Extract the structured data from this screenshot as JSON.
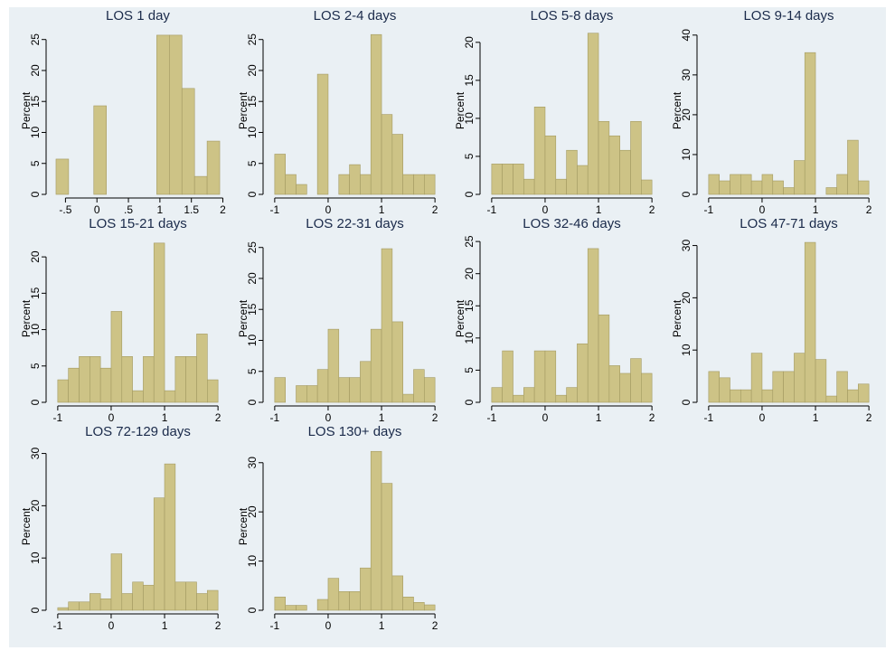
{
  "chart_data": [
    {
      "type": "histogram",
      "title": "LOS 1 day",
      "ylabel": "Percent",
      "color": "#cdc386",
      "bins": [
        -0.65,
        -0.45,
        -0.25,
        -0.05,
        0.15,
        0.35,
        0.55,
        0.75,
        0.95,
        1.15,
        1.35,
        1.55,
        1.75,
        1.95
      ],
      "values": [
        5.7,
        0,
        0,
        14.3,
        0,
        0,
        0,
        0,
        25.7,
        25.7,
        17.1,
        2.9,
        8.6
      ],
      "xlim": [
        -0.75,
        2.05
      ],
      "ylim": [
        0,
        27
      ],
      "xticks": [
        {
          "value": -0.5,
          "label": "-.5"
        },
        0,
        {
          "value": 0.5,
          "label": ".5"
        },
        1,
        1.5,
        2
      ],
      "yticks": [
        0,
        5,
        10,
        15,
        20,
        25
      ]
    },
    {
      "type": "histogram",
      "title": "LOS 2-4 days",
      "ylabel": "Percent",
      "color": "#cdc386",
      "bins": [
        -1,
        -0.8,
        -0.6,
        -0.4,
        -0.2,
        0,
        0.2,
        0.4,
        0.6,
        0.8,
        1,
        1.2,
        1.4,
        1.6,
        1.8,
        2
      ],
      "values": [
        6.5,
        3.2,
        1.6,
        0,
        19.4,
        0,
        3.2,
        4.8,
        3.2,
        25.8,
        12.9,
        9.7,
        3.2,
        3.2,
        3.2
      ],
      "xlim": [
        -1.15,
        2.15
      ],
      "ylim": [
        0,
        27
      ],
      "xticks": [
        -1,
        0,
        1,
        2
      ],
      "yticks": [
        0,
        5,
        10,
        15,
        20,
        25
      ]
    },
    {
      "type": "histogram",
      "title": "LOS 5-8 days",
      "ylabel": "Percent",
      "color": "#cdc386",
      "bins": [
        -1,
        -0.8,
        -0.6,
        -0.4,
        -0.2,
        0,
        0.2,
        0.4,
        0.6,
        0.8,
        1,
        1.2,
        1.4,
        1.6,
        1.8,
        2
      ],
      "values": [
        4,
        4,
        4,
        2,
        11.5,
        7.7,
        2,
        5.8,
        3.8,
        21.2,
        9.6,
        7.7,
        5.8,
        9.6,
        1.9
      ],
      "xlim": [
        -1.15,
        2.15
      ],
      "ylim": [
        0,
        22
      ],
      "xticks": [
        -1,
        0,
        1,
        2
      ],
      "yticks": [
        0,
        5,
        10,
        15,
        20
      ]
    },
    {
      "type": "histogram",
      "title": "LOS 9-14 days",
      "ylabel": "Percent",
      "color": "#cdc386",
      "bins": [
        -1,
        -0.8,
        -0.6,
        -0.4,
        -0.2,
        0,
        0.2,
        0.4,
        0.6,
        0.8,
        1,
        1.2,
        1.4,
        1.6,
        1.8,
        2
      ],
      "values": [
        5,
        3.4,
        5,
        5,
        3.4,
        5,
        3.4,
        1.7,
        8.5,
        35.6,
        0,
        1.7,
        5,
        13.6,
        3.4
      ],
      "xlim": [
        -1.15,
        2.15
      ],
      "ylim": [
        0,
        42
      ],
      "xticks": [
        -1,
        0,
        1,
        2
      ],
      "yticks": [
        0,
        10,
        20,
        30,
        40
      ]
    },
    {
      "type": "histogram",
      "title": "LOS 15-21 days",
      "ylabel": "Percent",
      "color": "#cdc386",
      "bins": [
        -1,
        -0.8,
        -0.6,
        -0.4,
        -0.2,
        0,
        0.2,
        0.4,
        0.6,
        0.8,
        1,
        1.2,
        1.4,
        1.6,
        1.8,
        2
      ],
      "values": [
        3.1,
        4.7,
        6.3,
        6.3,
        4.7,
        12.5,
        6.3,
        1.6,
        6.3,
        21.9,
        1.6,
        6.3,
        6.3,
        9.4,
        3.1
      ],
      "xlim": [
        -1.15,
        2.15
      ],
      "ylim": [
        0,
        23
      ],
      "xticks": [
        -1,
        0,
        1,
        2
      ],
      "yticks": [
        0,
        5,
        10,
        15,
        20
      ]
    },
    {
      "type": "histogram",
      "title": "LOS 22-31 days",
      "ylabel": "Percent",
      "color": "#cdc386",
      "bins": [
        -1,
        -0.8,
        -0.6,
        -0.4,
        -0.2,
        0,
        0.2,
        0.4,
        0.6,
        0.8,
        1,
        1.2,
        1.4,
        1.6,
        1.8,
        2
      ],
      "values": [
        4,
        0,
        2.7,
        2.7,
        5.3,
        11.8,
        4,
        4,
        6.6,
        11.8,
        24.8,
        13,
        1.3,
        5.3,
        4
      ],
      "xlim": [
        -1.15,
        2.15
      ],
      "ylim": [
        0,
        27
      ],
      "xticks": [
        -1,
        0,
        1,
        2
      ],
      "yticks": [
        0,
        5,
        10,
        15,
        20,
        25
      ]
    },
    {
      "type": "histogram",
      "title": "LOS 32-46 days",
      "ylabel": "Percent",
      "color": "#cdc386",
      "bins": [
        -1,
        -0.8,
        -0.6,
        -0.4,
        -0.2,
        0,
        0.2,
        0.4,
        0.6,
        0.8,
        1,
        1.2,
        1.4,
        1.6,
        1.8,
        2
      ],
      "values": [
        2.3,
        8,
        1.1,
        2.3,
        8,
        8,
        1.1,
        2.3,
        9.1,
        23.9,
        13.6,
        5.7,
        4.5,
        6.8,
        4.5
      ],
      "xlim": [
        -1.15,
        2.15
      ],
      "ylim": [
        0,
        26
      ],
      "xticks": [
        -1,
        0,
        1,
        2
      ],
      "yticks": [
        0,
        5,
        10,
        15,
        20,
        25
      ]
    },
    {
      "type": "histogram",
      "title": "LOS 47-71 days",
      "ylabel": "Percent",
      "color": "#cdc386",
      "bins": [
        -1,
        -0.8,
        -0.6,
        -0.4,
        -0.2,
        0,
        0.2,
        0.4,
        0.6,
        0.8,
        1,
        1.2,
        1.4,
        1.6,
        1.8,
        2
      ],
      "values": [
        5.9,
        4.7,
        2.4,
        2.4,
        9.4,
        2.4,
        5.9,
        5.9,
        9.4,
        30.6,
        8.2,
        1.2,
        5.9,
        2.4,
        3.5
      ],
      "xlim": [
        -1.15,
        2.15
      ],
      "ylim": [
        0,
        32
      ],
      "xticks": [
        -1,
        0,
        1,
        2
      ],
      "yticks": [
        0,
        10,
        20,
        30
      ]
    },
    {
      "type": "histogram",
      "title": "LOS 72-129 days",
      "ylabel": "Percent",
      "color": "#cdc386",
      "bins": [
        -1,
        -0.8,
        -0.6,
        -0.4,
        -0.2,
        0,
        0.2,
        0.4,
        0.6,
        0.8,
        1,
        1.2,
        1.4,
        1.6,
        1.8,
        2
      ],
      "values": [
        0.5,
        1.6,
        1.6,
        3.2,
        2.2,
        10.8,
        3.2,
        5.4,
        4.8,
        21.5,
        28,
        5.4,
        5.4,
        3.2,
        3.8
      ],
      "xlim": [
        -1.15,
        2.15
      ],
      "ylim": [
        0,
        32
      ],
      "xticks": [
        -1,
        0,
        1,
        2
      ],
      "yticks": [
        0,
        10,
        20,
        30
      ]
    },
    {
      "type": "histogram",
      "title": "LOS 130+ days",
      "ylabel": "Percent",
      "color": "#cdc386",
      "bins": [
        -1,
        -0.8,
        -0.6,
        -0.4,
        -0.2,
        0,
        0.2,
        0.4,
        0.6,
        0.8,
        1,
        1.2,
        1.4,
        1.6,
        1.8,
        2
      ],
      "values": [
        2.7,
        1,
        1,
        0,
        2.2,
        6.5,
        3.8,
        3.8,
        8.6,
        32.3,
        25.8,
        7,
        2.7,
        1.6,
        1.1
      ],
      "xlim": [
        -1.15,
        2.15
      ],
      "ylim": [
        0,
        34
      ],
      "xticks": [
        -1,
        0,
        1,
        2
      ],
      "yticks": [
        0,
        10,
        20,
        30
      ]
    }
  ]
}
